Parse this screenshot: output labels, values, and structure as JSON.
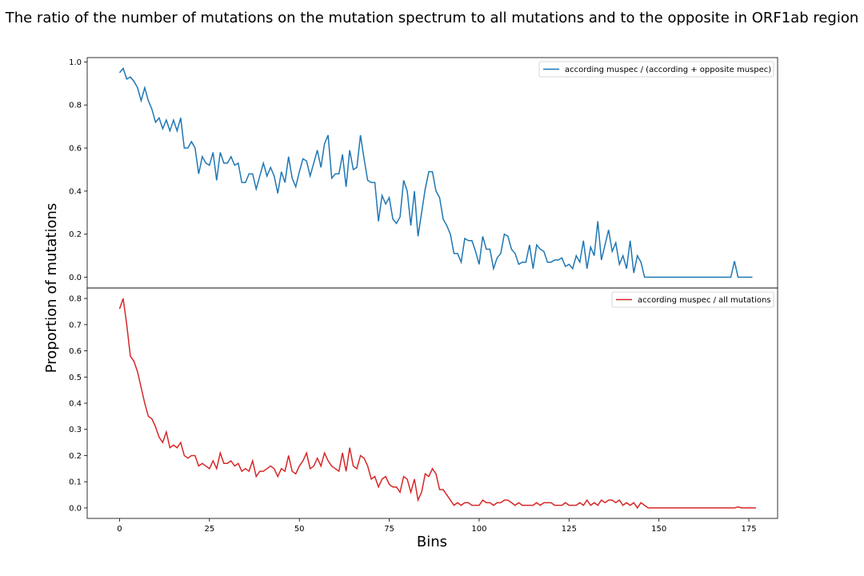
{
  "chart_data": {
    "title": "The ratio of the number of mutations on the mutation spectrum to all mutations and to the opposite in ORF1ab region",
    "xlabel": "Bins",
    "ylabel": "Proportion of mutations",
    "x_ticks": [
      "0",
      "25",
      "50",
      "75",
      "100",
      "125",
      "150",
      "175"
    ],
    "xlim": [
      -9,
      183
    ],
    "grid": false,
    "legend_placement": "upper right",
    "subplots": [
      {
        "type": "line",
        "ylim": [
          -0.05,
          1.02
        ],
        "y_ticks": [
          "0.0",
          "0.2",
          "0.4",
          "0.6",
          "0.8",
          "1.0"
        ],
        "series": [
          {
            "name": "according muspec / (according + opposite muspec)",
            "color": "#1f77b4",
            "x_start": 0,
            "values": [
              0.95,
              0.97,
              0.92,
              0.93,
              0.91,
              0.88,
              0.82,
              0.88,
              0.82,
              0.78,
              0.72,
              0.74,
              0.69,
              0.73,
              0.68,
              0.73,
              0.68,
              0.74,
              0.6,
              0.6,
              0.63,
              0.6,
              0.48,
              0.56,
              0.53,
              0.52,
              0.58,
              0.45,
              0.58,
              0.53,
              0.53,
              0.56,
              0.52,
              0.53,
              0.44,
              0.44,
              0.48,
              0.48,
              0.41,
              0.47,
              0.53,
              0.47,
              0.51,
              0.47,
              0.39,
              0.49,
              0.44,
              0.56,
              0.46,
              0.42,
              0.49,
              0.55,
              0.54,
              0.47,
              0.53,
              0.59,
              0.51,
              0.62,
              0.66,
              0.46,
              0.48,
              0.48,
              0.57,
              0.42,
              0.59,
              0.5,
              0.51,
              0.66,
              0.55,
              0.45,
              0.44,
              0.44,
              0.26,
              0.38,
              0.34,
              0.37,
              0.27,
              0.25,
              0.28,
              0.45,
              0.4,
              0.24,
              0.4,
              0.19,
              0.3,
              0.41,
              0.49,
              0.49,
              0.4,
              0.37,
              0.27,
              0.24,
              0.2,
              0.11,
              0.11,
              0.07,
              0.18,
              0.17,
              0.17,
              0.12,
              0.06,
              0.19,
              0.13,
              0.13,
              0.04,
              0.09,
              0.11,
              0.2,
              0.19,
              0.13,
              0.11,
              0.06,
              0.07,
              0.07,
              0.15,
              0.04,
              0.15,
              0.13,
              0.12,
              0.07,
              0.07,
              0.08,
              0.08,
              0.09,
              0.05,
              0.06,
              0.04,
              0.1,
              0.07,
              0.17,
              0.04,
              0.14,
              0.1,
              0.26,
              0.08,
              0.15,
              0.22,
              0.12,
              0.16,
              0.06,
              0.1,
              0.04,
              0.17,
              0.02,
              0.1,
              0.07,
              0.0,
              0.0,
              0.0,
              0.0,
              0.0,
              0.0,
              0.0,
              0.0,
              0.0,
              0.0,
              0.0,
              0.0,
              0.0,
              0.0,
              0.0,
              0.0,
              0.0,
              0.0,
              0.0,
              0.0,
              0.0,
              0.0,
              0.0,
              0.0,
              0.0,
              0.075,
              0.0,
              0.0,
              0.0,
              0.0,
              0.0
            ]
          }
        ]
      },
      {
        "type": "line",
        "ylim": [
          -0.04,
          0.84
        ],
        "y_ticks": [
          "0.0",
          "0.1",
          "0.2",
          "0.3",
          "0.4",
          "0.5",
          "0.6",
          "0.7",
          "0.8"
        ],
        "series": [
          {
            "name": "according muspec / all mutations",
            "color": "#d62728",
            "x_start": 0,
            "values": [
              0.76,
              0.8,
              0.7,
              0.58,
              0.56,
              0.52,
              0.46,
              0.4,
              0.35,
              0.34,
              0.31,
              0.27,
              0.25,
              0.29,
              0.23,
              0.24,
              0.23,
              0.25,
              0.2,
              0.19,
              0.2,
              0.2,
              0.16,
              0.17,
              0.16,
              0.15,
              0.18,
              0.15,
              0.21,
              0.17,
              0.17,
              0.18,
              0.16,
              0.17,
              0.14,
              0.15,
              0.14,
              0.18,
              0.12,
              0.14,
              0.14,
              0.15,
              0.16,
              0.15,
              0.12,
              0.15,
              0.14,
              0.2,
              0.14,
              0.13,
              0.16,
              0.18,
              0.21,
              0.15,
              0.16,
              0.19,
              0.16,
              0.21,
              0.18,
              0.16,
              0.15,
              0.14,
              0.21,
              0.14,
              0.23,
              0.16,
              0.15,
              0.2,
              0.19,
              0.16,
              0.11,
              0.12,
              0.08,
              0.11,
              0.12,
              0.09,
              0.08,
              0.08,
              0.06,
              0.12,
              0.11,
              0.06,
              0.11,
              0.03,
              0.06,
              0.13,
              0.12,
              0.15,
              0.13,
              0.07,
              0.07,
              0.05,
              0.03,
              0.01,
              0.02,
              0.01,
              0.02,
              0.02,
              0.01,
              0.01,
              0.01,
              0.03,
              0.02,
              0.02,
              0.01,
              0.02,
              0.02,
              0.03,
              0.03,
              0.02,
              0.01,
              0.02,
              0.01,
              0.01,
              0.01,
              0.01,
              0.02,
              0.01,
              0.02,
              0.02,
              0.02,
              0.01,
              0.01,
              0.01,
              0.02,
              0.01,
              0.01,
              0.01,
              0.02,
              0.01,
              0.03,
              0.01,
              0.02,
              0.01,
              0.03,
              0.02,
              0.03,
              0.03,
              0.02,
              0.03,
              0.01,
              0.02,
              0.01,
              0.02,
              0.0,
              0.02,
              0.01,
              0.0,
              0.0,
              0.0,
              0.0,
              0.0,
              0.0,
              0.0,
              0.0,
              0.0,
              0.0,
              0.0,
              0.0,
              0.0,
              0.0,
              0.0,
              0.0,
              0.0,
              0.0,
              0.0,
              0.0,
              0.0,
              0.0,
              0.0,
              0.0,
              0.0,
              0.004,
              0.0,
              0.0,
              0.0,
              0.0,
              0.0
            ]
          }
        ]
      }
    ]
  }
}
